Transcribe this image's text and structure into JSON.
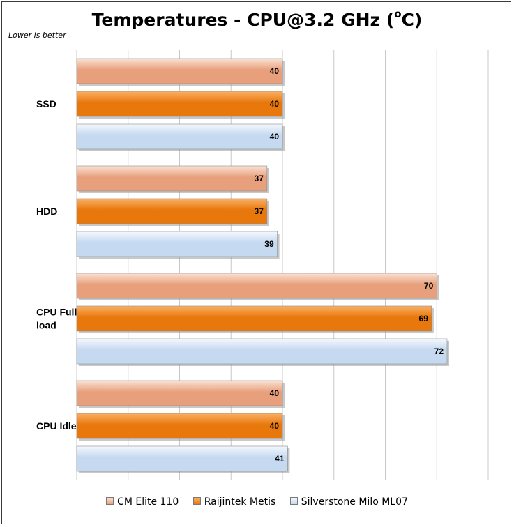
{
  "chart_data": {
    "type": "bar",
    "orientation": "horizontal",
    "title_main": "Temperatures - CPU@3.2 GHz (",
    "title_sup": "o",
    "title_end": "C)",
    "note": "Lower is better",
    "categories": [
      "SSD",
      "HDD",
      "CPU Full load",
      "CPU Idle"
    ],
    "category_lines": [
      [
        "SSD"
      ],
      [
        "HDD"
      ],
      [
        "CPU Full",
        "load"
      ],
      [
        "CPU Idle"
      ]
    ],
    "series": [
      {
        "name": "CM Elite 110",
        "values": [
          40,
          37,
          70,
          40
        ],
        "color": "#e8a07c",
        "light": "#fbe3d5"
      },
      {
        "name": "Raijintek Metis",
        "values": [
          40,
          37,
          69,
          40
        ],
        "color": "#e8780c",
        "light": "#fbb066"
      },
      {
        "name": "Silverstone Milo ML07",
        "values": [
          40,
          39,
          72,
          41
        ],
        "color": "#c5d9f1",
        "light": "#f4f8fd"
      }
    ],
    "xlim": [
      0,
      80
    ],
    "gridlines": true,
    "legend_position": "bottom"
  }
}
